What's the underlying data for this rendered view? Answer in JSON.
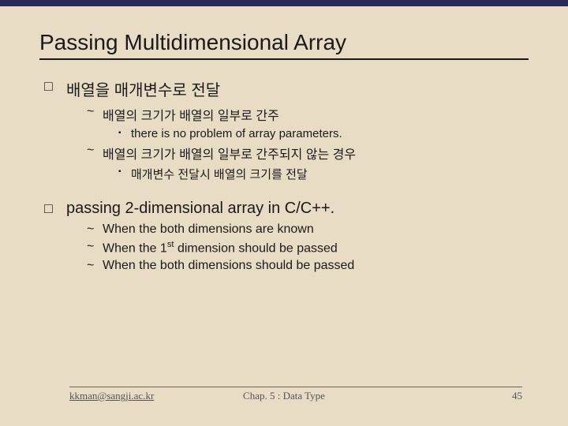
{
  "title": "Passing Multidimensional Array",
  "section1": {
    "heading": "배열을 매개변수로 전달",
    "items": [
      {
        "text": "배열의 크기가 배열의 일부로 간주",
        "sub": "there is no problem of array parameters."
      },
      {
        "text": "배열의 크기가 배열의 일부로 간주되지 않는 경우",
        "sub": "매개변수 전달시 배열의 크기를 전달"
      }
    ]
  },
  "section2": {
    "heading": "passing 2-dimensional array in C/C++.",
    "items": [
      "When the both dimensions are known",
      "When the 1st dimension should be passed",
      "When the both dimensions should be passed"
    ]
  },
  "footer": {
    "email": "kkman@sangji.ac.kr",
    "chapter": "Chap. 5 : Data Type",
    "page": "45"
  },
  "colors": {
    "background": "#e8dcc4",
    "topbar": "#2a2a5a",
    "text": "#1a1a1a",
    "footer_text": "#555555"
  }
}
